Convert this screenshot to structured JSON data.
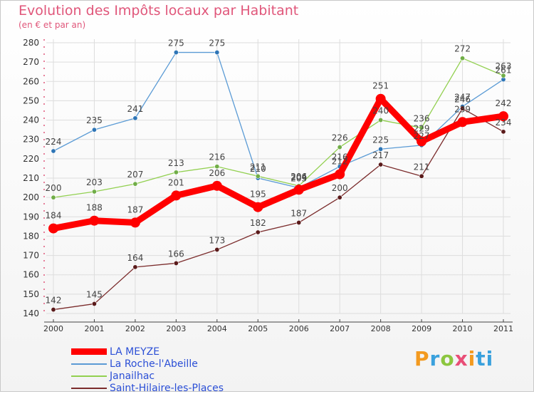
{
  "title": "Evolution des Impôts locaux par Habitant",
  "subtitle": "(en € et par an)",
  "logo": {
    "text": "Proxiti",
    "letters": [
      "P",
      "r",
      "o",
      "x",
      "i",
      "ti"
    ]
  },
  "chart_data": {
    "type": "line",
    "categories": [
      "2000",
      "2001",
      "2002",
      "2003",
      "2004",
      "2005",
      "2006",
      "2007",
      "2008",
      "2009",
      "2010",
      "2011"
    ],
    "ylim": [
      140,
      280
    ],
    "yticks": [
      140,
      150,
      160,
      170,
      180,
      190,
      200,
      210,
      220,
      230,
      240,
      250,
      260,
      270,
      280
    ],
    "grid": true,
    "legend_position": "bottom-left",
    "series": [
      {
        "name": "La Roche-l'Abeille",
        "color": "#5b9bd5",
        "markerColor": "#2e75b6",
        "values": [
          224,
          235,
          241,
          275,
          275,
          210,
          205,
          216,
          225,
          227,
          247,
          261
        ]
      },
      {
        "name": "Janailhac",
        "color": "#92d050",
        "markerColor": "#70ad47",
        "values": [
          200,
          203,
          207,
          213,
          216,
          211,
          206,
          226,
          240,
          236,
          272,
          263
        ]
      },
      {
        "name": "Saint-Hilaire-les-Places",
        "color": "#7b2c2c",
        "markerColor": "#5a1a1a",
        "values": [
          142,
          145,
          164,
          166,
          173,
          182,
          187,
          200,
          217,
          211,
          246,
          234
        ]
      },
      {
        "name": "LA MEYZE",
        "color": "#ff0000",
        "markerColor": "#ff0000",
        "values": [
          184,
          188,
          187,
          201,
          206,
          195,
          204,
          212,
          251,
          229,
          239,
          242
        ]
      }
    ],
    "legend_order": [
      "LA MEYZE",
      "La Roche-l'Abeille",
      "Janailhac",
      "Saint-Hilaire-les-Places"
    ]
  }
}
